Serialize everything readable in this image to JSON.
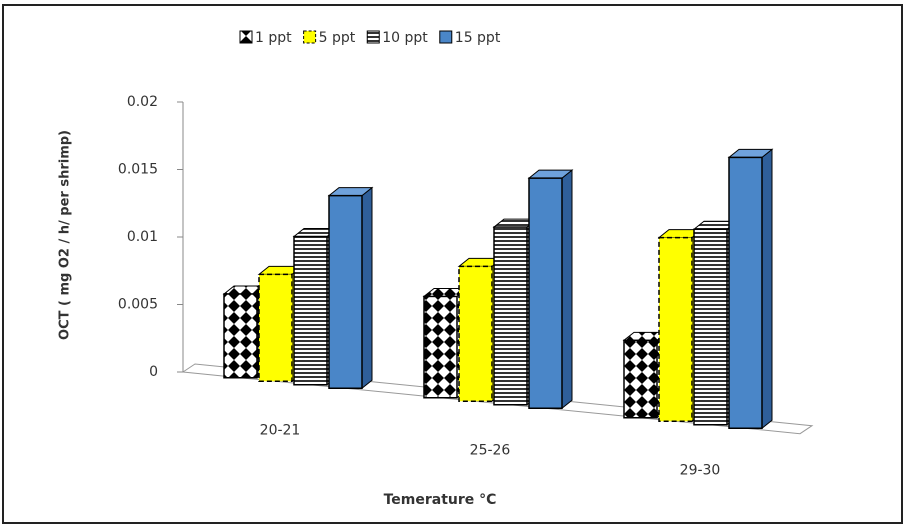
{
  "chart_data": {
    "type": "bar3d",
    "y_label": "OCT ( mg O2 / h/ per shrimp)",
    "x_label": "Temerature °C",
    "categories": [
      "20-21",
      "25-26",
      "29-30"
    ],
    "series": [
      {
        "name": "1 ppt",
        "color": "#000000",
        "values": [
          0.006,
          0.0065,
          0.0045
        ]
      },
      {
        "name": "5 ppt",
        "color": "#ffff00",
        "values": [
          0.0075,
          0.0085,
          0.0105
        ]
      },
      {
        "name": "10 ppt",
        "color": "#808080",
        "values": [
          0.0102,
          0.011,
          0.011
        ]
      },
      {
        "name": "15 ppt",
        "color": "#4a86c8",
        "values": [
          0.013,
          0.014,
          0.015
        ]
      }
    ],
    "ylim": [
      0,
      0.02
    ],
    "yticks": [
      0,
      0.005,
      0.01,
      0.015,
      0.02
    ]
  }
}
